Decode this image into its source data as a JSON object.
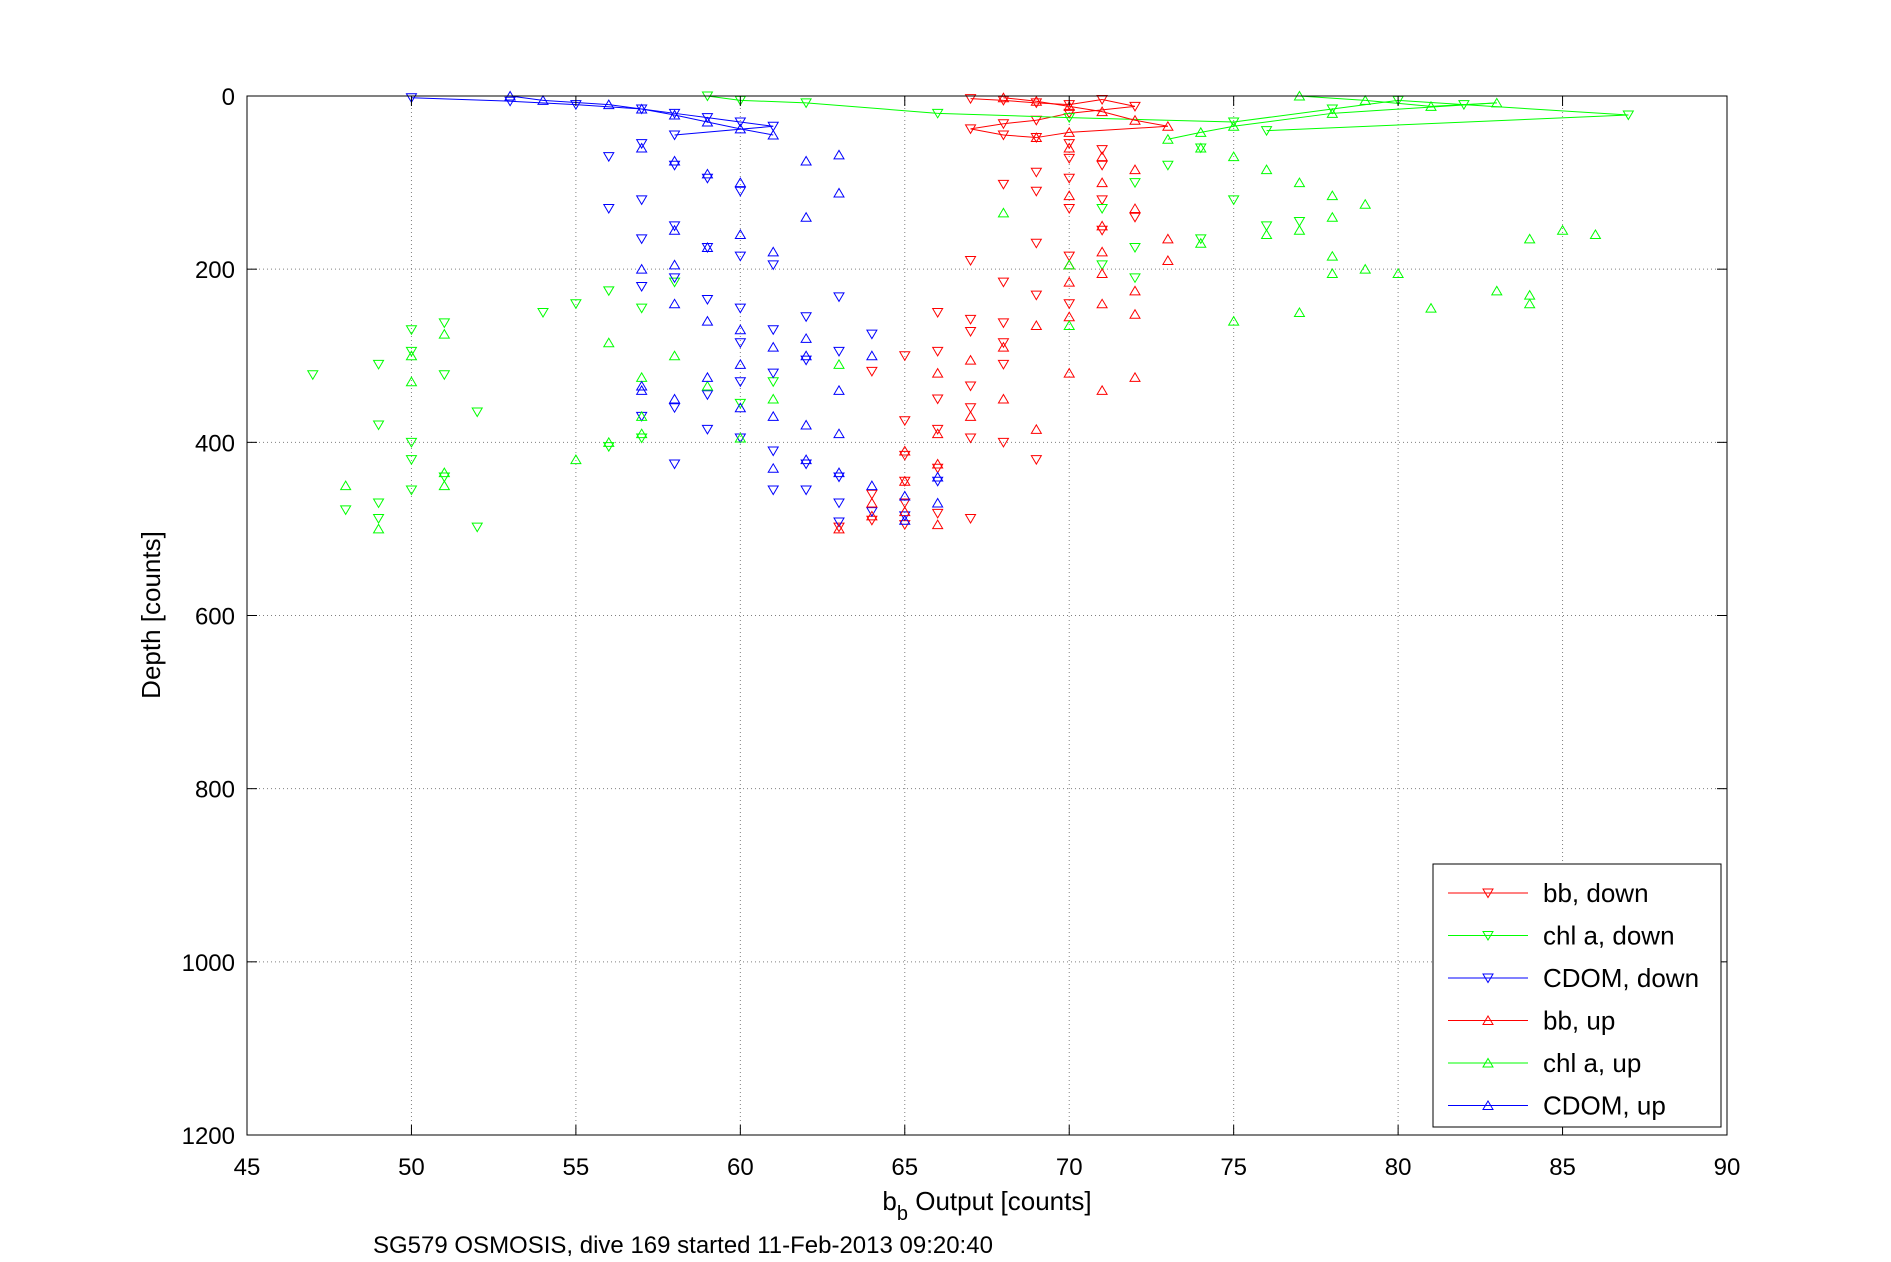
{
  "chart_data": {
    "type": "scatter",
    "xlabel_main": "b",
    "xlabel_sub": "b",
    "xlabel_rest": " Output [counts]",
    "ylabel": "Depth [counts]",
    "caption": "SG579 OSMOSIS, dive 169 started 11-Feb-2013 09:20:40",
    "xlim": [
      45,
      90
    ],
    "ylim": [
      0,
      1200
    ],
    "y_reversed": true,
    "grid": true,
    "legend_position": "bottom-right",
    "x_ticks": [
      "45",
      "50",
      "55",
      "60",
      "65",
      "70",
      "75",
      "80",
      "85",
      "90"
    ],
    "y_ticks": [
      "0",
      "200",
      "400",
      "600",
      "800",
      "1000",
      "1200"
    ],
    "x_tick_values": [
      45,
      50,
      55,
      60,
      65,
      70,
      75,
      80,
      85,
      90
    ],
    "y_tick_values": [
      0,
      200,
      400,
      600,
      800,
      1000,
      1200
    ],
    "series": [
      {
        "name": "bb, down",
        "color": "#ff0000",
        "marker": "triangle-down",
        "points": [
          [
            67,
            3
          ],
          [
            68,
            5
          ],
          [
            69,
            8
          ],
          [
            70,
            10
          ],
          [
            71,
            4
          ],
          [
            72,
            12
          ],
          [
            70,
            20
          ],
          [
            69,
            28
          ],
          [
            68,
            32
          ],
          [
            67,
            38
          ],
          [
            68,
            45
          ],
          [
            69,
            48
          ],
          [
            70,
            55
          ],
          [
            71,
            62
          ],
          [
            70,
            72
          ],
          [
            71,
            80
          ],
          [
            69,
            88
          ],
          [
            70,
            95
          ],
          [
            68,
            102
          ],
          [
            69,
            110
          ],
          [
            71,
            120
          ],
          [
            70,
            130
          ],
          [
            72,
            140
          ],
          [
            71,
            155
          ],
          [
            69,
            170
          ],
          [
            70,
            185
          ],
          [
            67,
            190
          ],
          [
            68,
            215
          ],
          [
            69,
            230
          ],
          [
            70,
            240
          ],
          [
            66,
            250
          ],
          [
            67,
            258
          ],
          [
            68,
            262
          ],
          [
            67,
            272
          ],
          [
            68,
            285
          ],
          [
            66,
            295
          ],
          [
            65,
            300
          ],
          [
            68,
            310
          ],
          [
            64,
            318
          ],
          [
            67,
            335
          ],
          [
            66,
            350
          ],
          [
            67,
            360
          ],
          [
            65,
            375
          ],
          [
            66,
            385
          ],
          [
            67,
            395
          ],
          [
            68,
            400
          ],
          [
            65,
            415
          ],
          [
            66,
            430
          ],
          [
            65,
            445
          ],
          [
            64,
            460
          ],
          [
            65,
            470
          ],
          [
            66,
            482
          ],
          [
            64,
            490
          ],
          [
            65,
            495
          ],
          [
            63,
            498
          ],
          [
            67,
            488
          ],
          [
            69,
            420
          ]
        ]
      },
      {
        "name": "chl a, down",
        "color": "#00ff00",
        "marker": "triangle-down",
        "points": [
          [
            59,
            0
          ],
          [
            60,
            5
          ],
          [
            62,
            8
          ],
          [
            66,
            20
          ],
          [
            70,
            25
          ],
          [
            75,
            30
          ],
          [
            78,
            15
          ],
          [
            80,
            5
          ],
          [
            82,
            10
          ],
          [
            87,
            22
          ],
          [
            76,
            40
          ],
          [
            74,
            60
          ],
          [
            73,
            80
          ],
          [
            72,
            100
          ],
          [
            71,
            130
          ],
          [
            76,
            150
          ],
          [
            74,
            165
          ],
          [
            72,
            175
          ],
          [
            71,
            195
          ],
          [
            72,
            210
          ],
          [
            55,
            240
          ],
          [
            54,
            250
          ],
          [
            56,
            225
          ],
          [
            57,
            245
          ],
          [
            51,
            262
          ],
          [
            50,
            270
          ],
          [
            50,
            295
          ],
          [
            49,
            310
          ],
          [
            51,
            322
          ],
          [
            52,
            365
          ],
          [
            47,
            322
          ],
          [
            49,
            380
          ],
          [
            50,
            400
          ],
          [
            50,
            420
          ],
          [
            51,
            440
          ],
          [
            50,
            455
          ],
          [
            49,
            470
          ],
          [
            49,
            488
          ],
          [
            52,
            498
          ],
          [
            48,
            478
          ],
          [
            56,
            405
          ],
          [
            57,
            395
          ],
          [
            58,
            215
          ],
          [
            75,
            120
          ],
          [
            77,
            145
          ],
          [
            60,
            355
          ],
          [
            61,
            330
          ]
        ]
      },
      {
        "name": "CDOM, down",
        "color": "#0000ff",
        "marker": "triangle-down",
        "points": [
          [
            50,
            2
          ],
          [
            53,
            6
          ],
          [
            55,
            10
          ],
          [
            57,
            15
          ],
          [
            58,
            20
          ],
          [
            59,
            25
          ],
          [
            60,
            30
          ],
          [
            61,
            35
          ],
          [
            58,
            45
          ],
          [
            57,
            55
          ],
          [
            56,
            70
          ],
          [
            58,
            80
          ],
          [
            59,
            95
          ],
          [
            60,
            110
          ],
          [
            57,
            120
          ],
          [
            56,
            130
          ],
          [
            58,
            150
          ],
          [
            57,
            165
          ],
          [
            59,
            175
          ],
          [
            60,
            185
          ],
          [
            61,
            195
          ],
          [
            58,
            210
          ],
          [
            57,
            220
          ],
          [
            59,
            235
          ],
          [
            60,
            245
          ],
          [
            62,
            255
          ],
          [
            61,
            270
          ],
          [
            60,
            285
          ],
          [
            63,
            295
          ],
          [
            62,
            305
          ],
          [
            61,
            320
          ],
          [
            60,
            330
          ],
          [
            59,
            345
          ],
          [
            58,
            360
          ],
          [
            57,
            370
          ],
          [
            59,
            385
          ],
          [
            60,
            395
          ],
          [
            61,
            410
          ],
          [
            62,
            425
          ],
          [
            63,
            440
          ],
          [
            62,
            455
          ],
          [
            63,
            470
          ],
          [
            64,
            480
          ],
          [
            63,
            492
          ],
          [
            65,
            485
          ],
          [
            66,
            445
          ],
          [
            61,
            455
          ],
          [
            58,
            425
          ],
          [
            64,
            275
          ],
          [
            63,
            232
          ]
        ]
      },
      {
        "name": "bb, up",
        "color": "#ff0000",
        "marker": "triangle-up",
        "points": [
          [
            68,
            2
          ],
          [
            69,
            6
          ],
          [
            70,
            12
          ],
          [
            71,
            18
          ],
          [
            72,
            28
          ],
          [
            73,
            35
          ],
          [
            70,
            42
          ],
          [
            69,
            48
          ],
          [
            70,
            60
          ],
          [
            71,
            70
          ],
          [
            72,
            85
          ],
          [
            71,
            100
          ],
          [
            70,
            115
          ],
          [
            72,
            130
          ],
          [
            71,
            150
          ],
          [
            73,
            165
          ],
          [
            71,
            180
          ],
          [
            70,
            195
          ],
          [
            73,
            190
          ],
          [
            71,
            205
          ],
          [
            70,
            215
          ],
          [
            72,
            225
          ],
          [
            71,
            240
          ],
          [
            70,
            255
          ],
          [
            72,
            252
          ],
          [
            69,
            265
          ],
          [
            68,
            290
          ],
          [
            67,
            305
          ],
          [
            66,
            320
          ],
          [
            70,
            320
          ],
          [
            71,
            340
          ],
          [
            68,
            350
          ],
          [
            67,
            370
          ],
          [
            66,
            390
          ],
          [
            65,
            410
          ],
          [
            66,
            425
          ],
          [
            65,
            445
          ],
          [
            64,
            470
          ],
          [
            65,
            480
          ],
          [
            66,
            495
          ],
          [
            63,
            500
          ],
          [
            64,
            485
          ],
          [
            72,
            325
          ],
          [
            69,
            385
          ]
        ]
      },
      {
        "name": "chl a, up",
        "color": "#00ff00",
        "marker": "triangle-up",
        "points": [
          [
            77,
            0
          ],
          [
            79,
            5
          ],
          [
            81,
            12
          ],
          [
            83,
            8
          ],
          [
            78,
            20
          ],
          [
            75,
            35
          ],
          [
            74,
            42
          ],
          [
            73,
            50
          ],
          [
            74,
            60
          ],
          [
            75,
            70
          ],
          [
            76,
            85
          ],
          [
            77,
            100
          ],
          [
            78,
            115
          ],
          [
            79,
            125
          ],
          [
            78,
            140
          ],
          [
            76,
            160
          ],
          [
            74,
            170
          ],
          [
            77,
            155
          ],
          [
            78,
            185
          ],
          [
            79,
            200
          ],
          [
            80,
            205
          ],
          [
            81,
            245
          ],
          [
            83,
            225
          ],
          [
            84,
            230
          ],
          [
            84,
            240
          ],
          [
            85,
            155
          ],
          [
            86,
            160
          ],
          [
            84,
            165
          ],
          [
            78,
            205
          ],
          [
            77,
            250
          ],
          [
            75,
            260
          ],
          [
            70,
            195
          ],
          [
            70,
            265
          ],
          [
            68,
            135
          ],
          [
            57,
            325
          ],
          [
            57,
            370
          ],
          [
            57,
            390
          ],
          [
            56,
            400
          ],
          [
            55,
            420
          ],
          [
            58,
            300
          ],
          [
            56,
            285
          ],
          [
            59,
            335
          ],
          [
            60,
            395
          ],
          [
            61,
            350
          ],
          [
            63,
            310
          ],
          [
            51,
            435
          ],
          [
            51,
            450
          ],
          [
            49,
            500
          ],
          [
            48,
            450
          ],
          [
            50,
            300
          ],
          [
            50,
            330
          ],
          [
            51,
            275
          ]
        ]
      },
      {
        "name": "CDOM, up",
        "color": "#0000ff",
        "marker": "triangle-up",
        "points": [
          [
            53,
            0
          ],
          [
            54,
            5
          ],
          [
            56,
            10
          ],
          [
            57,
            15
          ],
          [
            58,
            22
          ],
          [
            59,
            30
          ],
          [
            60,
            38
          ],
          [
            61,
            45
          ],
          [
            57,
            60
          ],
          [
            58,
            75
          ],
          [
            59,
            90
          ],
          [
            60,
            100
          ],
          [
            62,
            75
          ],
          [
            63,
            68
          ],
          [
            63,
            112
          ],
          [
            62,
            140
          ],
          [
            60,
            160
          ],
          [
            61,
            180
          ],
          [
            58,
            195
          ],
          [
            57,
            200
          ],
          [
            58,
            240
          ],
          [
            59,
            260
          ],
          [
            60,
            270
          ],
          [
            62,
            280
          ],
          [
            61,
            290
          ],
          [
            62,
            300
          ],
          [
            60,
            310
          ],
          [
            59,
            325
          ],
          [
            57,
            340
          ],
          [
            58,
            350
          ],
          [
            60,
            360
          ],
          [
            61,
            370
          ],
          [
            62,
            380
          ],
          [
            63,
            390
          ],
          [
            64,
            300
          ],
          [
            63,
            340
          ],
          [
            62,
            420
          ],
          [
            63,
            435
          ],
          [
            64,
            450
          ],
          [
            65,
            462
          ],
          [
            66,
            470
          ],
          [
            65,
            490
          ],
          [
            66,
            440
          ],
          [
            61,
            430
          ],
          [
            57,
            335
          ],
          [
            58,
            155
          ],
          [
            59,
            175
          ]
        ]
      }
    ]
  }
}
